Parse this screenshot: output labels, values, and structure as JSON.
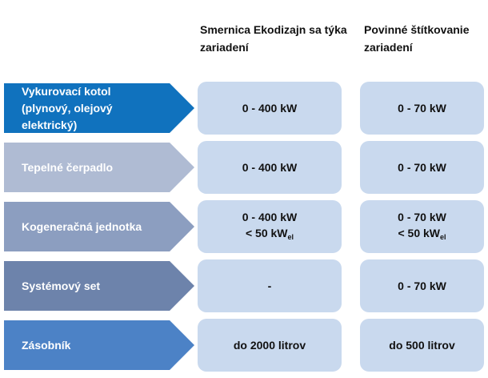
{
  "colors": {
    "cell_background": "#C9D9EE",
    "header_text": "#111111",
    "arrow_text": "#FFFFFF"
  },
  "headers": {
    "ecodesign": "Smernica Ekodizajn sa týka zariadení",
    "labelling": "Povinné štítkovanie zariadení"
  },
  "rows": [
    {
      "label": "Vykurovací kotol (plynový, olejový elektrický)",
      "arrow_color": "#1072BE",
      "ecodesign": {
        "line1": "0 - 400 kW"
      },
      "labelling": {
        "line1": "0 - 70 kW"
      }
    },
    {
      "label": "Tepelné čerpadlo",
      "arrow_color": "#AFBBD3",
      "ecodesign": {
        "line1": "0 - 400 kW"
      },
      "labelling": {
        "line1": "0 - 70 kW"
      }
    },
    {
      "label": "Kogeneračná jednotka",
      "arrow_color": "#8C9EC0",
      "ecodesign": {
        "line1": "0 - 400 kW",
        "line2_main": "< 50 kW",
        "line2_sub": "el"
      },
      "labelling": {
        "line1": "0 - 70 kW",
        "line2_main": "< 50 kW",
        "line2_sub": "el"
      }
    },
    {
      "label": "Systémový set",
      "arrow_color": "#6D83AB",
      "ecodesign": {
        "line1": "-"
      },
      "labelling": {
        "line1": "0 - 70 kW"
      }
    },
    {
      "label": "Zásobník",
      "arrow_color": "#4C82C6",
      "ecodesign": {
        "line1": "do 2000 litrov"
      },
      "labelling": {
        "line1": "do 500 litrov"
      }
    }
  ]
}
